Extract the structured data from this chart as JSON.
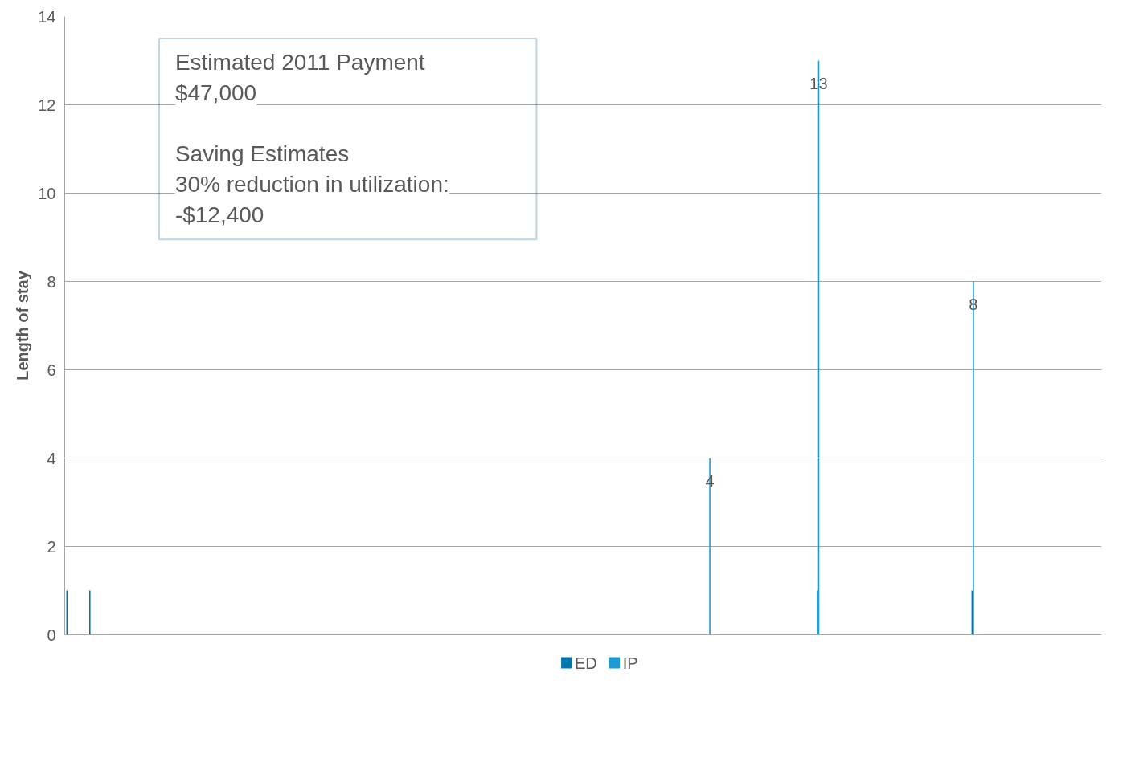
{
  "chart_data": {
    "type": "bar",
    "ylabel": "Length of stay",
    "categories": [
      null,
      null,
      null,
      null,
      null,
      null,
      null,
      null,
      null,
      null,
      null,
      null,
      null,
      null,
      null,
      null,
      null,
      null,
      null,
      null,
      null,
      null,
      null,
      null,
      null,
      null,
      null,
      null,
      null,
      null,
      null,
      null,
      null,
      null,
      null,
      null,
      null,
      null,
      null,
      null,
      null,
      null,
      null,
      null,
      null,
      null,
      null,
      null,
      null,
      null,
      null,
      null,
      null,
      null,
      null,
      null,
      null,
      null,
      null,
      null,
      null,
      null,
      null,
      null,
      null,
      null,
      null,
      null,
      null,
      null,
      null,
      null,
      null,
      null,
      null,
      null,
      null,
      null,
      null,
      null,
      null,
      null,
      null,
      null,
      null,
      null,
      null,
      null,
      null,
      null,
      null,
      null,
      null,
      null,
      null,
      null,
      null,
      null,
      null,
      null,
      null,
      null,
      null,
      null,
      null,
      null,
      null,
      null,
      null,
      null,
      null,
      null,
      null,
      null,
      null,
      null,
      null,
      null,
      null,
      null,
      null,
      null,
      null,
      null,
      null,
      null,
      null,
      null,
      null,
      null,
      null,
      null,
      null,
      null,
      null,
      null,
      null,
      null,
      null,
      null,
      null,
      null,
      null,
      null,
      null,
      null,
      null,
      null,
      null,
      null,
      null,
      null,
      null,
      null,
      null,
      null,
      null,
      null,
      null,
      null,
      null,
      null,
      null,
      null,
      null,
      null,
      null,
      null,
      null,
      null,
      null,
      null,
      null,
      null,
      null,
      null,
      null,
      null,
      null,
      null,
      null
    ],
    "ylim": [
      0,
      14
    ],
    "yticks": [
      0,
      2,
      4,
      6,
      8,
      10,
      12,
      14
    ],
    "series": [
      {
        "name": "ED",
        "color": "#0077b0",
        "values": [
          1,
          null,
          null,
          null,
          1,
          null,
          null,
          null,
          null,
          null,
          null,
          null,
          null,
          null,
          null,
          null,
          null,
          null,
          null,
          null,
          null,
          null,
          null,
          null,
          null,
          null,
          null,
          null,
          null,
          null,
          null,
          null,
          null,
          null,
          null,
          null,
          null,
          null,
          null,
          null,
          null,
          null,
          null,
          null,
          null,
          null,
          null,
          null,
          null,
          null,
          null,
          null,
          null,
          null,
          null,
          null,
          null,
          null,
          null,
          null,
          null,
          null,
          null,
          null,
          null,
          null,
          null,
          null,
          null,
          null,
          null,
          null,
          null,
          null,
          null,
          null,
          null,
          null,
          null,
          null,
          null,
          null,
          null,
          null,
          null,
          null,
          null,
          null,
          null,
          null,
          null,
          null,
          null,
          null,
          null,
          null,
          null,
          null,
          null,
          null,
          null,
          null,
          null,
          null,
          null,
          null,
          null,
          null,
          null,
          null,
          null,
          null,
          null,
          null,
          null,
          null,
          null,
          null,
          null,
          null,
          null,
          null,
          null,
          null,
          null,
          null,
          null,
          null,
          null,
          null,
          null,
          1,
          null,
          null,
          null,
          null,
          null,
          null,
          null,
          null,
          null,
          null,
          null,
          null,
          null,
          null,
          null,
          null,
          null,
          null,
          null,
          null,
          null,
          null,
          null,
          null,
          null,
          null,
          1,
          null,
          null,
          null,
          null,
          null,
          null,
          null,
          null,
          null,
          null,
          null,
          null,
          null,
          null,
          null,
          null,
          null,
          null,
          null,
          null,
          null,
          null
        ]
      },
      {
        "name": "IP",
        "color": "#1a9ad6",
        "values": [
          null,
          null,
          null,
          null,
          null,
          null,
          null,
          null,
          null,
          null,
          null,
          null,
          null,
          null,
          null,
          null,
          null,
          null,
          null,
          null,
          null,
          null,
          null,
          null,
          null,
          null,
          null,
          null,
          null,
          null,
          null,
          null,
          null,
          null,
          null,
          null,
          null,
          null,
          null,
          null,
          null,
          null,
          null,
          null,
          null,
          null,
          null,
          null,
          null,
          null,
          null,
          null,
          null,
          null,
          null,
          null,
          null,
          null,
          null,
          null,
          null,
          null,
          null,
          null,
          null,
          null,
          null,
          null,
          null,
          null,
          null,
          null,
          null,
          null,
          null,
          null,
          null,
          null,
          null,
          null,
          null,
          null,
          null,
          null,
          null,
          null,
          null,
          null,
          null,
          null,
          null,
          null,
          null,
          null,
          null,
          null,
          null,
          null,
          null,
          null,
          null,
          null,
          null,
          null,
          null,
          null,
          null,
          null,
          null,
          null,
          null,
          null,
          4,
          null,
          null,
          null,
          null,
          null,
          null,
          null,
          null,
          null,
          null,
          null,
          null,
          null,
          null,
          null,
          null,
          null,
          null,
          13,
          null,
          null,
          null,
          null,
          null,
          null,
          null,
          null,
          null,
          null,
          null,
          null,
          null,
          null,
          null,
          null,
          null,
          null,
          null,
          null,
          null,
          null,
          null,
          null,
          null,
          null,
          8,
          null,
          null,
          null,
          null,
          null,
          null,
          null,
          null,
          null,
          null,
          null,
          null,
          null,
          null,
          null,
          null,
          null,
          null,
          null,
          null,
          null,
          null
        ],
        "value_labels": [
          null,
          null,
          null,
          null,
          null,
          null,
          null,
          null,
          null,
          null,
          null,
          null,
          null,
          null,
          null,
          null,
          null,
          null,
          null,
          null,
          null,
          null,
          null,
          null,
          null,
          null,
          null,
          null,
          null,
          null,
          null,
          null,
          null,
          null,
          null,
          null,
          null,
          null,
          null,
          null,
          null,
          null,
          null,
          null,
          null,
          null,
          null,
          null,
          null,
          null,
          null,
          null,
          null,
          null,
          null,
          null,
          null,
          null,
          null,
          null,
          null,
          null,
          null,
          null,
          null,
          null,
          null,
          null,
          null,
          null,
          null,
          null,
          null,
          null,
          null,
          null,
          null,
          null,
          null,
          null,
          null,
          null,
          null,
          null,
          null,
          null,
          null,
          null,
          null,
          null,
          null,
          null,
          null,
          null,
          null,
          null,
          null,
          null,
          null,
          null,
          null,
          null,
          null,
          null,
          null,
          null,
          null,
          null,
          null,
          null,
          null,
          null,
          "4",
          null,
          null,
          null,
          null,
          null,
          null,
          null,
          null,
          null,
          null,
          null,
          null,
          null,
          null,
          null,
          null,
          null,
          null,
          "13",
          null,
          null,
          null,
          null,
          null,
          null,
          null,
          null,
          null,
          null,
          null,
          null,
          null,
          null,
          null,
          null,
          null,
          null,
          null,
          null,
          null,
          null,
          null,
          null,
          null,
          null,
          "8",
          null,
          null,
          null,
          null,
          null,
          null,
          null,
          null,
          null,
          null,
          null,
          null,
          null,
          null,
          null,
          null,
          null,
          null,
          null,
          null,
          null,
          null
        ]
      }
    ],
    "annotations": [
      "Estimated 2011 Payment",
      "$47,000",
      "Saving Estimates",
      "30% reduction in utilization:",
      "-$12,400"
    ],
    "grid": "y",
    "legend": "bottom",
    "tick_labels": "y"
  }
}
